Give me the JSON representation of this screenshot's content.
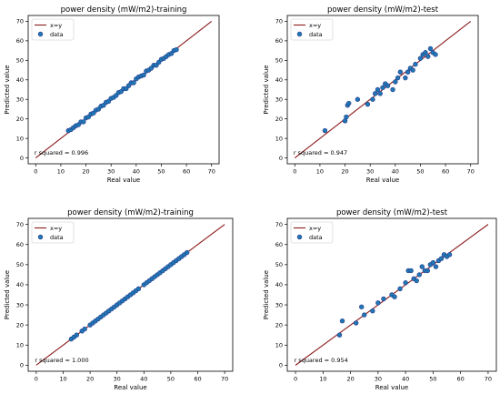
{
  "chart_data": [
    {
      "type": "scatter",
      "title": "power density (mW/m2)-training",
      "xlabel": "Real value",
      "ylabel": "Predicted value",
      "xlim": [
        -3,
        73
      ],
      "ylim": [
        -3,
        73
      ],
      "xticks": [
        0,
        10,
        20,
        30,
        40,
        50,
        60,
        70
      ],
      "yticks": [
        0,
        10,
        20,
        30,
        40,
        50,
        60,
        70
      ],
      "legend": [
        "x=y",
        "data"
      ],
      "legend_position": "top-left",
      "annotation": "r squared = 0.996",
      "series": [
        {
          "name": "x=y",
          "kind": "line",
          "x": [
            0,
            70
          ],
          "y": [
            0,
            70
          ]
        },
        {
          "name": "data",
          "kind": "scatter",
          "x": [
            13,
            14,
            15,
            16,
            17,
            18,
            19,
            20,
            21,
            22,
            23,
            24,
            25,
            26,
            27,
            28,
            29,
            30,
            31,
            32,
            33,
            34,
            35,
            36,
            37,
            38,
            39,
            40,
            41,
            42,
            43,
            44,
            45,
            46,
            47,
            48,
            49,
            50,
            51,
            52,
            53,
            54,
            55,
            56
          ],
          "y": [
            14,
            14.5,
            15.5,
            16.5,
            17,
            18.5,
            18.5,
            20.5,
            21,
            22.5,
            23,
            24.5,
            25,
            26.5,
            27,
            28.5,
            29,
            30.5,
            31,
            32,
            33.5,
            34,
            35.5,
            35.5,
            37,
            38.5,
            38.5,
            40.5,
            41.5,
            42,
            42.5,
            44.5,
            45,
            46,
            47.5,
            47.5,
            49,
            50.5,
            51,
            52,
            53,
            53.5,
            55,
            55.5
          ]
        }
      ]
    },
    {
      "type": "scatter",
      "title": "power density (mW/m2)-test",
      "xlabel": "Real value",
      "ylabel": "Predicted value",
      "xlim": [
        -3,
        73
      ],
      "ylim": [
        -3,
        73
      ],
      "xticks": [
        0,
        10,
        20,
        30,
        40,
        50,
        60,
        70
      ],
      "yticks": [
        0,
        10,
        20,
        30,
        40,
        50,
        60,
        70
      ],
      "legend": [
        "x=y",
        "data"
      ],
      "legend_position": "top-left",
      "annotation": "r squared = 0.947",
      "series": [
        {
          "name": "x=y",
          "kind": "line",
          "x": [
            0,
            70
          ],
          "y": [
            0,
            70
          ]
        },
        {
          "name": "data",
          "kind": "scatter",
          "x": [
            12,
            20,
            20.5,
            21,
            21.5,
            25,
            29,
            31,
            32,
            33,
            34,
            35,
            36,
            37,
            39,
            40,
            41,
            42,
            44,
            45,
            46,
            47,
            48,
            50,
            51,
            52,
            53,
            54,
            55,
            56
          ],
          "y": [
            14,
            19,
            21,
            27,
            28,
            30,
            27.5,
            30,
            33,
            35,
            33,
            36,
            38,
            37,
            35,
            39,
            41,
            44,
            41,
            44,
            46,
            45,
            48,
            51,
            53,
            54,
            52,
            56,
            54,
            53
          ]
        }
      ]
    },
    {
      "type": "scatter",
      "title": "power density (mW/m2)-training",
      "xlabel": "Real value",
      "ylabel": "Predicted value",
      "xlim": [
        -3,
        73
      ],
      "ylim": [
        -3,
        73
      ],
      "xticks": [
        0,
        10,
        20,
        30,
        40,
        50,
        60,
        70
      ],
      "yticks": [
        0,
        10,
        20,
        30,
        40,
        50,
        60,
        70
      ],
      "legend": [
        "x=y",
        "data"
      ],
      "legend_position": "top-left",
      "annotation": "r squared = 1.000",
      "series": [
        {
          "name": "x=y",
          "kind": "line",
          "x": [
            0,
            70
          ],
          "y": [
            0,
            70
          ]
        },
        {
          "name": "data",
          "kind": "scatter",
          "x": [
            13,
            14,
            15,
            17,
            18,
            20,
            21,
            22,
            23,
            24,
            25,
            26,
            27,
            28,
            29,
            30,
            31,
            32,
            33,
            34,
            35,
            36,
            37,
            38,
            40,
            41,
            42,
            43,
            44,
            45,
            46,
            47,
            48,
            49,
            50,
            51,
            52,
            53,
            54,
            55,
            56
          ],
          "y": [
            13,
            14,
            15,
            17,
            18,
            20,
            21,
            22,
            23,
            24,
            25,
            26,
            27,
            28,
            29,
            30,
            31,
            32,
            33,
            34,
            35,
            36,
            37,
            38,
            40,
            41,
            42,
            43,
            44,
            45,
            46,
            47,
            48,
            49,
            50,
            51,
            52,
            53,
            54,
            55,
            56
          ]
        }
      ]
    },
    {
      "type": "scatter",
      "title": "power density (mW/m2)-test",
      "xlabel": "Real value",
      "ylabel": "Predicted value",
      "xlim": [
        -3,
        73
      ],
      "ylim": [
        -3,
        73
      ],
      "xticks": [
        0,
        10,
        20,
        30,
        40,
        50,
        60,
        70
      ],
      "yticks": [
        0,
        10,
        20,
        30,
        40,
        50,
        60,
        70
      ],
      "legend": [
        "x=y",
        "data"
      ],
      "legend_position": "top-left",
      "annotation": "r squared = 0.954",
      "series": [
        {
          "name": "x=y",
          "kind": "line",
          "x": [
            0,
            70
          ],
          "y": [
            0,
            70
          ]
        },
        {
          "name": "data",
          "kind": "scatter",
          "x": [
            16,
            17,
            22,
            24,
            25,
            28,
            30,
            32,
            35,
            36,
            38,
            40,
            41,
            42,
            43,
            44,
            45,
            46,
            47,
            48,
            49,
            50,
            51,
            52,
            53,
            54,
            55,
            56
          ],
          "y": [
            15,
            22,
            21,
            29,
            25,
            27,
            31,
            33,
            35,
            34,
            38,
            41,
            47,
            47,
            43,
            42,
            45,
            49,
            47,
            47,
            50,
            51,
            49,
            52,
            53,
            55,
            54,
            55
          ]
        }
      ]
    }
  ],
  "style": {
    "line_color": "#8b1a1a",
    "marker_fill": "#1f77b4",
    "marker_edge": "#2a3d8f",
    "axis_color": "#000000",
    "legend_edge": "#cccccc"
  }
}
